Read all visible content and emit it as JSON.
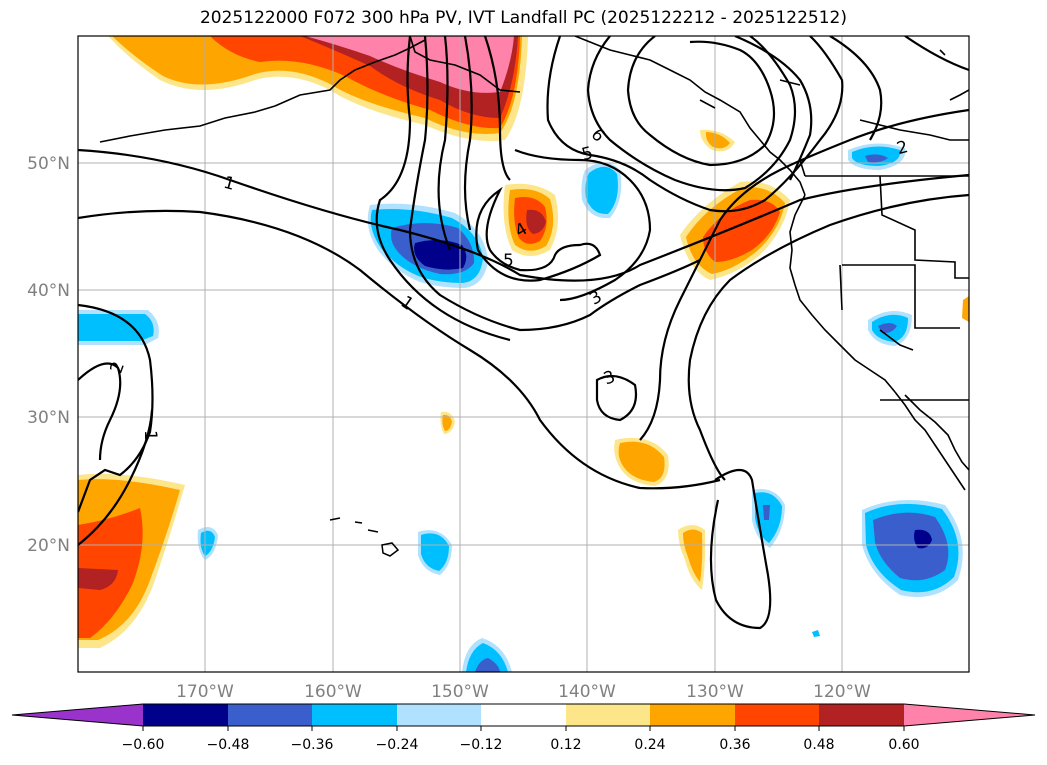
{
  "title": "2025122000 F072 300 hPa PV, IVT Landfall PC (2025122212 - 2025122512)",
  "map": {
    "lat_labels": [
      "50°N",
      "40°N",
      "30°N",
      "20°N"
    ],
    "lon_labels": [
      "170°W",
      "160°W",
      "150°W",
      "140°W",
      "130°W",
      "120°W"
    ],
    "pv_contour_labels": [
      "1",
      "1",
      "1",
      "2",
      "3",
      "3",
      "4",
      "5",
      "5",
      "6",
      "2"
    ]
  },
  "colorbar": {
    "colors": [
      "#9933cc",
      "#00008b",
      "#3a5fcd",
      "#00bfff",
      "#b0e2ff",
      "#ffffff",
      "#fde68a",
      "#ffa500",
      "#ff4500",
      "#b22222",
      "#ff82ab",
      "#ff82ab"
    ],
    "tick_labels": [
      "−0.60",
      "−0.48",
      "−0.36",
      "−0.24",
      "−0.12",
      "0.12",
      "0.24",
      "0.36",
      "0.48",
      "0.60"
    ]
  }
}
